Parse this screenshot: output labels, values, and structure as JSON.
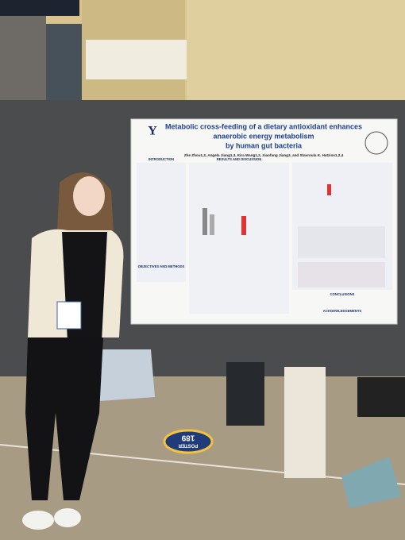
{
  "poster": {
    "title_lines": [
      "Metabolic cross-feeding of a dietary antioxidant enhances",
      "anaerobic energy metabolism",
      "by human gut bacteria"
    ],
    "authors": "Zhe Zhou1,2, Angela Jiang1,3, Kira Wang1,2, Xiaofang Jiang3, and Stavroula K. Hatzios1,2,4",
    "logo": "Y",
    "sections": [
      "INTRODUCTION",
      "RESULTS AND DISCUSSION",
      "OBJECTIVES AND METHODS",
      "CONCLUSIONS",
      "ACKNOWLEDGEMENTS"
    ]
  },
  "floor_sign": {
    "label": "POSTER",
    "number": "189"
  }
}
